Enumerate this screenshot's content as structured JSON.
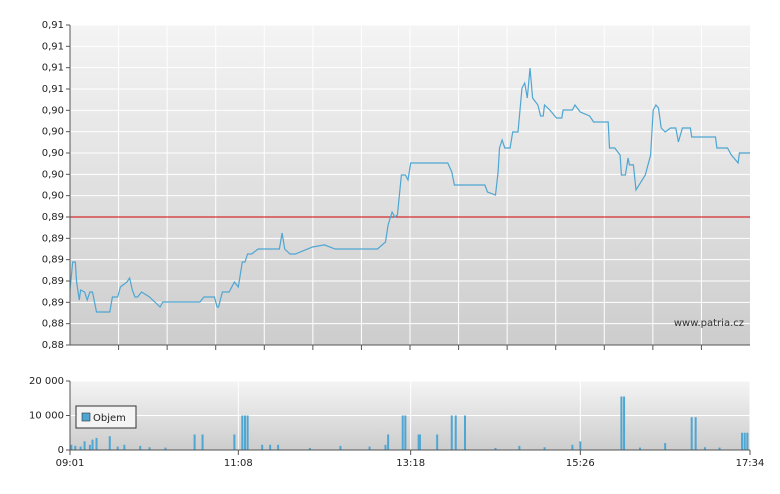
{
  "chart_data": [
    {
      "type": "line",
      "annotation": "www.patria.cz",
      "xlim": [
        "09:01",
        "17:34"
      ],
      "ylim": [
        0.882,
        0.912
      ],
      "yticks": [
        {
          "value": 0.882,
          "label": "0,88"
        },
        {
          "value": 0.884,
          "label": "0,88"
        },
        {
          "value": 0.886,
          "label": "0,89"
        },
        {
          "value": 0.888,
          "label": "0,89"
        },
        {
          "value": 0.89,
          "label": "0,89"
        },
        {
          "value": 0.892,
          "label": "0,89"
        },
        {
          "value": 0.894,
          "label": "0,89"
        },
        {
          "value": 0.896,
          "label": "0,90"
        },
        {
          "value": 0.898,
          "label": "0,90"
        },
        {
          "value": 0.9,
          "label": "0,90"
        },
        {
          "value": 0.902,
          "label": "0,90"
        },
        {
          "value": 0.904,
          "label": "0,90"
        },
        {
          "value": 0.906,
          "label": "0,91"
        },
        {
          "value": 0.908,
          "label": "0,91"
        },
        {
          "value": 0.91,
          "label": "0,91"
        },
        {
          "value": 0.912,
          "label": "0,91"
        }
      ],
      "grid": true,
      "reference_line": {
        "value": 0.894,
        "color": "#d40000"
      },
      "color": "#4ea6d2",
      "x": [
        "09:01",
        "09:03",
        "09:05",
        "09:06",
        "09:08",
        "09:09",
        "09:12",
        "09:14",
        "09:16",
        "09:18",
        "09:21",
        "09:31",
        "09:33",
        "09:37",
        "09:39",
        "09:44",
        "09:46",
        "09:48",
        "09:50",
        "09:52",
        "09:55",
        "10:01",
        "10:05",
        "10:09",
        "10:11",
        "10:39",
        "10:42",
        "10:50",
        "10:52",
        "10:53",
        "10:56",
        "11:01",
        "11:05",
        "11:08",
        "11:11",
        "11:13",
        "11:15",
        "11:18",
        "11:23",
        "11:39",
        "11:41",
        "11:43",
        "11:47",
        "11:51",
        "12:04",
        "12:13",
        "12:21",
        "12:53",
        "12:59",
        "13:01",
        "13:04",
        "13:06",
        "13:08",
        "13:11",
        "13:14",
        "13:16",
        "13:18",
        "13:46",
        "13:49",
        "13:51",
        "14:14",
        "14:16",
        "14:22",
        "14:24",
        "14:25",
        "14:27",
        "14:29",
        "14:33",
        "14:35",
        "14:39",
        "14:42",
        "14:44",
        "14:46",
        "14:48",
        "14:50",
        "14:54",
        "14:56",
        "14:58",
        "14:59",
        "15:03",
        "15:08",
        "15:12",
        "15:13",
        "15:20",
        "15:22",
        "15:26",
        "15:33",
        "15:36",
        "15:47",
        "15:48",
        "15:52",
        "15:56",
        "15:57",
        "16:00",
        "16:02",
        "16:03",
        "16:06",
        "16:08",
        "16:15",
        "16:19",
        "16:21",
        "16:23",
        "16:25",
        "16:27",
        "16:30",
        "16:34",
        "16:38",
        "16:40",
        "16:43",
        "16:49",
        "16:50",
        "17:08",
        "17:09",
        "17:17",
        "17:20",
        "17:25",
        "17:26",
        "17:34"
      ],
      "values": [
        0.88716,
        0.88978,
        0.88978,
        0.88791,
        0.88622,
        0.88716,
        0.88697,
        0.88622,
        0.88697,
        0.88697,
        0.88509,
        0.88509,
        0.8865,
        0.8865,
        0.88744,
        0.88791,
        0.88828,
        0.88716,
        0.8865,
        0.8865,
        0.88697,
        0.8865,
        0.88603,
        0.88556,
        0.88603,
        0.88603,
        0.8865,
        0.8865,
        0.88556,
        0.88556,
        0.88697,
        0.88697,
        0.88791,
        0.88744,
        0.88978,
        0.88978,
        0.89053,
        0.89053,
        0.891,
        0.891,
        0.8925,
        0.891,
        0.89053,
        0.89053,
        0.89119,
        0.89138,
        0.891,
        0.891,
        0.89166,
        0.89325,
        0.89447,
        0.894,
        0.89419,
        0.89794,
        0.89794,
        0.89747,
        0.89906,
        0.89906,
        0.89822,
        0.897,
        0.897,
        0.89634,
        0.89606,
        0.89822,
        0.90047,
        0.90122,
        0.90047,
        0.90047,
        0.90197,
        0.90197,
        0.90609,
        0.90656,
        0.90516,
        0.90797,
        0.90516,
        0.9045,
        0.90347,
        0.90347,
        0.9045,
        0.90403,
        0.90328,
        0.90328,
        0.90403,
        0.90403,
        0.9045,
        0.90384,
        0.90347,
        0.90291,
        0.90291,
        0.90047,
        0.90047,
        0.89981,
        0.89794,
        0.89794,
        0.89953,
        0.89888,
        0.89888,
        0.89653,
        0.89794,
        0.89981,
        0.90403,
        0.9045,
        0.90422,
        0.90234,
        0.90197,
        0.90234,
        0.90234,
        0.90103,
        0.90234,
        0.90234,
        0.9015,
        0.9015,
        0.90047,
        0.90047,
        0.89981,
        0.89906,
        0.9,
        0.9
      ]
    },
    {
      "type": "bar",
      "xlim": [
        "09:01",
        "17:34"
      ],
      "xticks": [
        "09:01",
        "11:08",
        "13:18",
        "15:26",
        "17:34"
      ],
      "ylim": [
        0,
        20000
      ],
      "yticks": [
        0,
        {
          "value": 10000,
          "label": "10 000"
        },
        {
          "value": 20000,
          "label": "20 000"
        }
      ],
      "grid": true,
      "legend": "upper-left",
      "x": [
        "09:02",
        "09:05",
        "09:09",
        "09:12",
        "09:16",
        "09:18",
        "09:21",
        "09:31",
        "09:37",
        "09:42",
        "09:54",
        "10:01",
        "10:13",
        "10:35",
        "10:41",
        "11:05",
        "11:11",
        "11:13",
        "11:15",
        "11:26",
        "11:32",
        "11:38",
        "12:02",
        "12:25",
        "12:47",
        "12:59",
        "13:01",
        "13:12",
        "13:14",
        "13:24",
        "13:25",
        "13:38",
        "13:49",
        "13:52",
        "13:59",
        "14:22",
        "14:40",
        "14:59",
        "15:20",
        "15:26",
        "15:57",
        "15:59",
        "16:11",
        "16:30",
        "16:50",
        "16:53",
        "17:00",
        "17:11",
        "17:28",
        "17:30",
        "17:32"
      ],
      "series": [
        {
          "name": "Objem",
          "color": "#4ea6d2",
          "values": [
            1500,
            1200,
            1000,
            2500,
            1500,
            3000,
            3500,
            4000,
            1000,
            1500,
            1200,
            800,
            700,
            4500,
            4500,
            4500,
            10000,
            10000,
            10000,
            1500,
            1500,
            1500,
            600,
            1200,
            1000,
            1500,
            4500,
            10000,
            10000,
            4500,
            4500,
            4500,
            10000,
            10000,
            10000,
            600,
            1200,
            800,
            1500,
            2500,
            15500,
            15500,
            700,
            2000,
            9500,
            9500,
            800,
            700,
            5000,
            5000,
            5000
          ]
        }
      ]
    }
  ]
}
